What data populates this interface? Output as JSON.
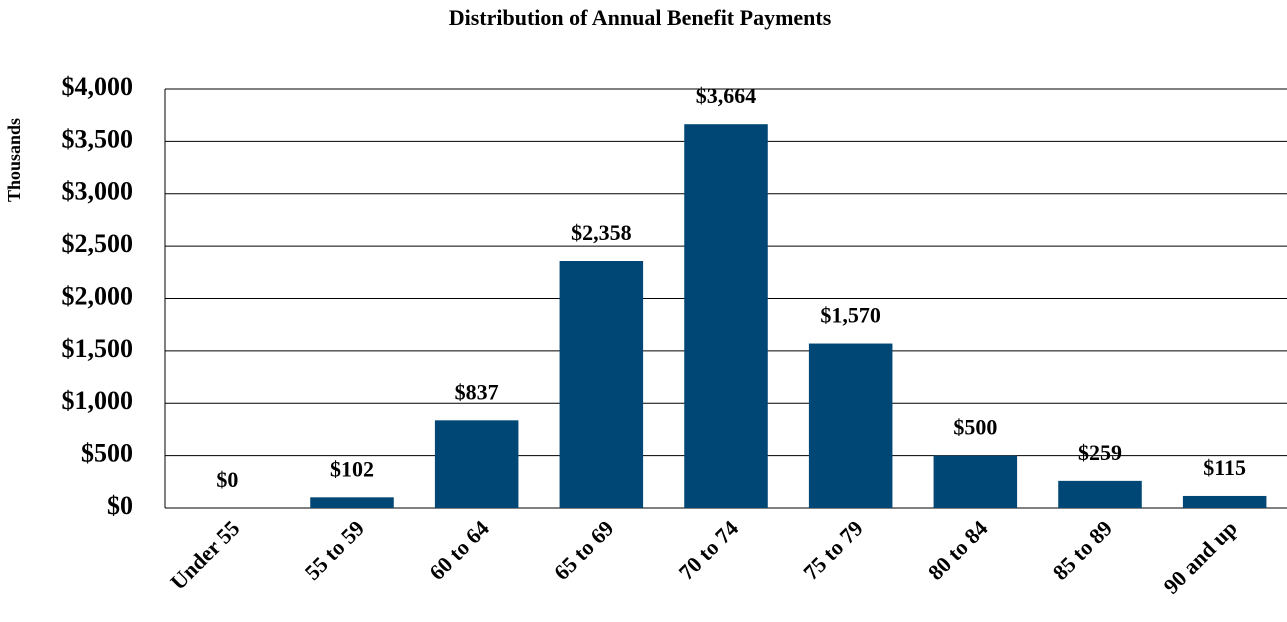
{
  "chart_data": {
    "type": "bar",
    "title": "Distribution of Annual Benefit Payments",
    "y_label": "Thousands",
    "categories": [
      "Under 55",
      "55 to 59",
      "60 to 64",
      "65 to 69",
      "70 to 74",
      "75 to 79",
      "80 to 84",
      "85 to 89",
      "90 and up"
    ],
    "values": [
      0,
      102,
      837,
      2358,
      3664,
      1570,
      500,
      259,
      115
    ],
    "value_labels": [
      "$0",
      "$102",
      "$837",
      "$2,358",
      "$3,664",
      "$1,570",
      "$500",
      "$259",
      "$115"
    ],
    "color": "#004775",
    "ylim": [
      0,
      4000
    ],
    "yticks": [
      {
        "value": 0,
        "label": "$0"
      },
      {
        "value": 500,
        "label": "$500"
      },
      {
        "value": 1000,
        "label": "$1,000"
      },
      {
        "value": 1500,
        "label": "$1,500"
      },
      {
        "value": 2000,
        "label": "$2,000"
      },
      {
        "value": 2500,
        "label": "$2,500"
      },
      {
        "value": 3000,
        "label": "$3,000"
      },
      {
        "value": 3500,
        "label": "$3,500"
      },
      {
        "value": 4000,
        "label": "$4,000"
      }
    ],
    "grid": true
  }
}
